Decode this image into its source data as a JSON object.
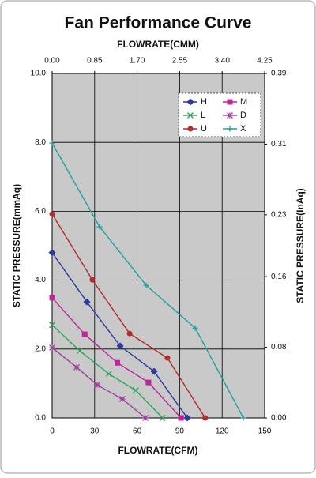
{
  "chart_data": {
    "type": "line",
    "title": "Fan Performance Curve",
    "xlabel": "FLOWRATE(CFM)",
    "x2label": "FLOWRATE(CMM)",
    "ylabel": "STATIC PRESSURE(mmAq)",
    "y2label": "STATIC PRESSURE(InAq)",
    "xlim": [
      0,
      150
    ],
    "xticks": [
      0,
      30,
      60,
      90,
      120,
      150
    ],
    "x2lim": [
      0,
      4.25
    ],
    "x2ticks": [
      {
        "value": 0,
        "label": "0.00"
      },
      0.85,
      {
        "value": 1.7,
        "label": "1.70"
      },
      2.55,
      {
        "value": 3.4,
        "label": "3.40"
      },
      4.25
    ],
    "ylim": [
      0,
      10
    ],
    "yticks": [
      {
        "value": 0,
        "label": "0.0"
      },
      {
        "value": 2,
        "label": "2.0"
      },
      {
        "value": 4,
        "label": "4.0"
      },
      {
        "value": 6,
        "label": "6.0"
      },
      {
        "value": 8,
        "label": "8.0"
      },
      {
        "value": 10,
        "label": "10.0"
      }
    ],
    "y2lim": [
      0,
      0.39
    ],
    "y2ticks": [
      {
        "value": 0,
        "label": "0.00"
      },
      0.08,
      0.16,
      0.23,
      0.31,
      0.39
    ],
    "grid": true,
    "legend": "upper right",
    "series": [
      {
        "name": "H",
        "color": "#2b3a9e",
        "marker": "diamond",
        "x": [
          0,
          24.5,
          48,
          72,
          95.4
        ],
        "values": [
          4.8,
          3.37,
          2.09,
          1.35,
          0
        ]
      },
      {
        "name": "M",
        "color": "#c0249a",
        "marker": "square",
        "x": [
          0,
          23,
          46,
          68,
          91
        ],
        "values": [
          3.49,
          2.43,
          1.6,
          1.03,
          0
        ]
      },
      {
        "name": "L",
        "color": "#2aa65a",
        "marker": "x",
        "x": [
          0,
          19.5,
          40,
          59,
          78
        ],
        "values": [
          2.7,
          1.95,
          1.28,
          0.8,
          0
        ]
      },
      {
        "name": "D",
        "color": "#a040a0",
        "marker": "star",
        "x": [
          0,
          17.3,
          31.8,
          49.6,
          65.8
        ],
        "values": [
          2.04,
          1.47,
          0.96,
          0.55,
          0
        ]
      },
      {
        "name": "U",
        "color": "#b52a2a",
        "marker": "circle",
        "x": [
          0,
          28.4,
          54.7,
          81.4,
          108
        ],
        "values": [
          5.92,
          4.01,
          2.45,
          1.74,
          0
        ]
      },
      {
        "name": "X",
        "color": "#1fa0a0",
        "marker": "plus",
        "x": [
          0,
          33.5,
          66.4,
          101,
          135
        ],
        "values": [
          7.98,
          5.55,
          3.85,
          2.61,
          0
        ]
      }
    ]
  }
}
